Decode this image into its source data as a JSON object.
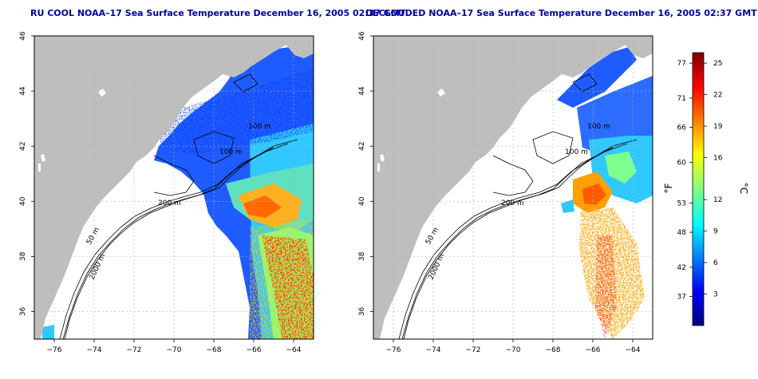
{
  "panels": [
    {
      "title": "RU COOL NOAA–17 Sea Surface Temperature December 16, 2005 02:37 GMT",
      "kind": "full",
      "contour_labels": [
        "100 m",
        "200 m",
        "50 m",
        "2000 m",
        "100 m"
      ]
    },
    {
      "title": "DECLOUDED NOAA–17 Sea Surface Temperature December 16, 2005 02:37 GMT",
      "kind": "declouded",
      "contour_labels": [
        "100 m",
        "200 m",
        "50 m",
        "2000 m",
        "100 m"
      ]
    }
  ],
  "axes": {
    "x_ticks": [
      "−76",
      "−74",
      "−72",
      "−70",
      "−68",
      "−66",
      "−64"
    ],
    "y_ticks": [
      "36",
      "38",
      "40",
      "42",
      "44",
      "46"
    ],
    "lon_range": [
      -77,
      -63
    ],
    "lat_range": [
      35,
      46
    ]
  },
  "colorbar": {
    "f_ticks": [
      "77",
      "71",
      "66",
      "60",
      "53",
      "48",
      "42",
      "37"
    ],
    "c_ticks": [
      "25",
      "22",
      "19",
      "16",
      "12",
      "9",
      "6",
      "3"
    ],
    "f_label": "°F",
    "c_label": "°C",
    "colors": [
      "#00007f",
      "#0000ff",
      "#007fff",
      "#00ffff",
      "#7fff7f",
      "#ffff00",
      "#ff7f00",
      "#ff0000",
      "#7f0000"
    ]
  },
  "colors": {
    "land": "#bebebe",
    "title": "#0000a0",
    "grid": "#b4b4b4"
  }
}
